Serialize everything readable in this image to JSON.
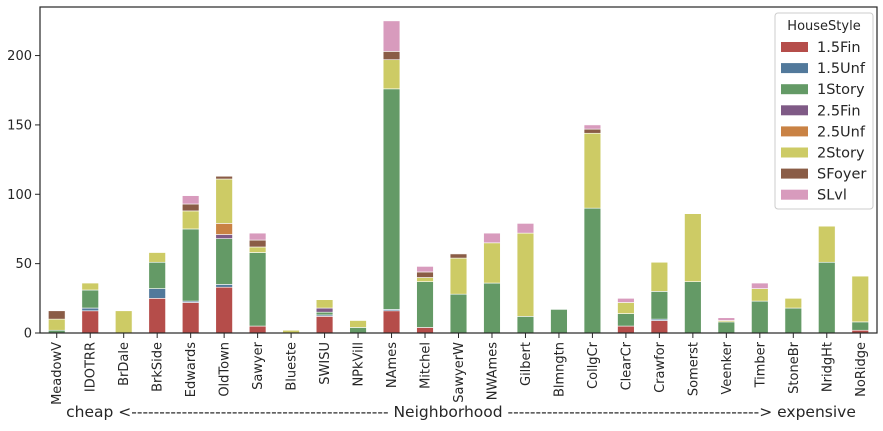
{
  "chart_data": {
    "type": "bar",
    "stacked": true,
    "xlabel": "cheap <---------------------------------------------- Neighborhood ---------------------------------------------> expensive",
    "ylabel": "",
    "ylim": [
      0,
      235
    ],
    "yticks": [
      0,
      50,
      100,
      150,
      200
    ],
    "grid": false,
    "legend": {
      "title": "HouseStyle",
      "placement": "top-right"
    },
    "categories": [
      "MeadowV",
      "IDOTRR",
      "BrDale",
      "BrkSide",
      "Edwards",
      "OldTown",
      "Sawyer",
      "Blueste",
      "SWISU",
      "NPkVill",
      "NAmes",
      "Mitchel",
      "SawyerW",
      "NWAmes",
      "Gilbert",
      "Blmngtn",
      "CollgCr",
      "ClearCr",
      "Crawfor",
      "Somerst",
      "Veenker",
      "Timber",
      "StoneBr",
      "NridgHt",
      "NoRidge"
    ],
    "series": [
      {
        "name": "1.5Fin",
        "color": "#b54d4a",
        "values": [
          0,
          16,
          0,
          25,
          22,
          33,
          5,
          0,
          12,
          0,
          16,
          4,
          0,
          0,
          0,
          0,
          0,
          5,
          9,
          0,
          0,
          0,
          0,
          0,
          2
        ]
      },
      {
        "name": "1.5Unf",
        "color": "#52799b",
        "values": [
          0,
          2,
          0,
          7,
          1,
          2,
          0,
          0,
          1,
          0,
          1,
          0,
          0,
          0,
          0,
          0,
          0,
          0,
          1,
          0,
          0,
          0,
          0,
          0,
          0
        ]
      },
      {
        "name": "1Story",
        "color": "#649a66",
        "values": [
          2,
          13,
          0,
          19,
          52,
          33,
          53,
          0,
          2,
          4,
          159,
          33,
          28,
          36,
          12,
          17,
          90,
          9,
          20,
          37,
          8,
          23,
          18,
          51,
          6
        ]
      },
      {
        "name": "2.5Fin",
        "color": "#7f5a86",
        "values": [
          0,
          0,
          0,
          0,
          0,
          3,
          0,
          0,
          3,
          0,
          0,
          0,
          0,
          0,
          0,
          0,
          0,
          0,
          0,
          0,
          0,
          0,
          0,
          0,
          0
        ]
      },
      {
        "name": "2.5Unf",
        "color": "#c98244",
        "values": [
          0,
          0,
          0,
          0,
          0,
          8,
          0,
          0,
          0,
          0,
          0,
          0,
          0,
          0,
          0,
          0,
          0,
          0,
          0,
          0,
          0,
          0,
          0,
          0,
          0
        ]
      },
      {
        "name": "2Story",
        "color": "#cdcb65",
        "values": [
          8,
          5,
          16,
          7,
          13,
          32,
          4,
          2,
          6,
          5,
          21,
          3,
          26,
          29,
          60,
          0,
          54,
          8,
          21,
          49,
          1,
          9,
          7,
          26,
          33
        ]
      },
      {
        "name": "SFoyer",
        "color": "#8a5c46",
        "values": [
          6,
          0,
          0,
          0,
          5,
          2,
          5,
          0,
          0,
          0,
          6,
          4,
          3,
          0,
          0,
          0,
          3,
          0,
          0,
          0,
          0,
          0,
          0,
          0,
          0
        ]
      },
      {
        "name": "SLvl",
        "color": "#d89bbd",
        "values": [
          0,
          0,
          0,
          0,
          6,
          0,
          5,
          0,
          0,
          0,
          22,
          4,
          0,
          7,
          7,
          0,
          3,
          3,
          0,
          0,
          2,
          4,
          0,
          0,
          0
        ]
      }
    ]
  }
}
